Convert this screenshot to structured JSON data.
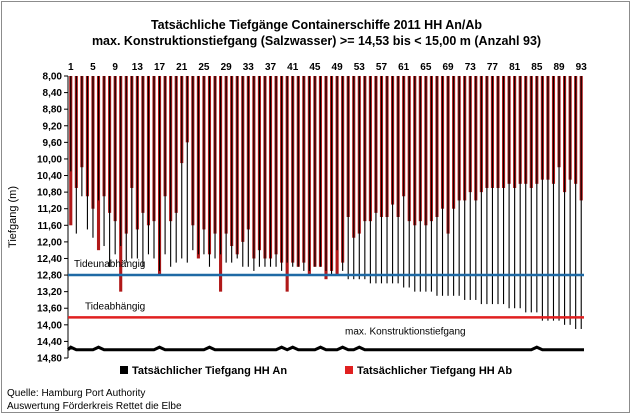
{
  "title_line1": "Tatsächliche Tiefgänge Containerschiffe  2011 HH An/Ab",
  "title_line2": "max. Konstruktionstiefgang  (Salzwasser) >= 14,53 bis < 15,00 m (Anzahl 93)",
  "source_line1": "Quelle: Hamburg Port Authority",
  "source_line2": "Auswertung Förderkreis Rettet die Elbe",
  "chart_data": {
    "type": "bar",
    "title": "Tatsächliche Tiefgänge Containerschiffe  2011 HH An/Ab",
    "subtitle": "max. Konstruktionstiefgang  (Salzwasser) >= 14,53 bis < 15,00 m (Anzahl 93)",
    "ylabel": "Tiefgang (m)",
    "xlabel": "",
    "ylim": [
      8.0,
      14.8
    ],
    "y_inverted": true,
    "y_ticks": [
      "8,00",
      "8,40",
      "8,80",
      "9,20",
      "9,60",
      "10,00",
      "10,40",
      "10,80",
      "11,20",
      "11,60",
      "12,00",
      "12,40",
      "12,80",
      "13,20",
      "13,60",
      "14,00",
      "14,40",
      "14,80"
    ],
    "x_tick_labels": [
      "1",
      "5",
      "9",
      "13",
      "17",
      "21",
      "25",
      "29",
      "33",
      "37",
      "41",
      "45",
      "49",
      "53",
      "57",
      "61",
      "65",
      "69",
      "73",
      "77",
      "81",
      "85",
      "89",
      "93"
    ],
    "categories": [
      1,
      2,
      3,
      4,
      5,
      6,
      7,
      8,
      9,
      10,
      11,
      12,
      13,
      14,
      15,
      16,
      17,
      18,
      19,
      20,
      21,
      22,
      23,
      24,
      25,
      26,
      27,
      28,
      29,
      30,
      31,
      32,
      33,
      34,
      35,
      36,
      37,
      38,
      39,
      40,
      41,
      42,
      43,
      44,
      45,
      46,
      47,
      48,
      49,
      50,
      51,
      52,
      53,
      54,
      55,
      56,
      57,
      58,
      59,
      60,
      61,
      62,
      63,
      64,
      65,
      66,
      67,
      68,
      69,
      70,
      71,
      72,
      73,
      74,
      75,
      76,
      77,
      78,
      79,
      80,
      81,
      82,
      83,
      84,
      85,
      86,
      87,
      88,
      89,
      90,
      91,
      92,
      93
    ],
    "series": [
      {
        "name": "Tatsächlicher Tiefgang HH An",
        "color": "#000000",
        "values": [
          10.3,
          11.8,
          10.9,
          11.7,
          11.9,
          11.0,
          12.1,
          12.6,
          12.3,
          12.1,
          12.5,
          12.4,
          12.4,
          12.6,
          12.3,
          12.4,
          12.7,
          12.3,
          12.6,
          12.5,
          12.4,
          12.5,
          12.2,
          12.3,
          12.3,
          12.6,
          12.4,
          12.3,
          12.5,
          12.5,
          12.4,
          12.6,
          12.6,
          12.7,
          12.6,
          12.6,
          12.6,
          12.6,
          12.7,
          12.5,
          12.6,
          12.6,
          12.7,
          12.7,
          12.6,
          12.6,
          12.7,
          12.8,
          12.2,
          12.7,
          12.9,
          12.9,
          12.9,
          12.9,
          13.0,
          13.0,
          13.0,
          13.0,
          13.0,
          13.0,
          13.1,
          13.1,
          13.2,
          13.2,
          13.2,
          13.2,
          13.3,
          13.3,
          13.3,
          13.3,
          13.3,
          13.4,
          13.4,
          13.4,
          13.5,
          13.5,
          13.5,
          13.5,
          13.5,
          13.6,
          13.6,
          13.6,
          13.7,
          13.7,
          13.7,
          13.9,
          13.9,
          13.9,
          13.9,
          14.0,
          14.0,
          14.1,
          14.1
        ]
      },
      {
        "name": "Tatsächlicher Tiefgang HH Ab",
        "color": "#b01818",
        "values": [
          11.6,
          10.7,
          10.2,
          10.9,
          11.2,
          12.2,
          10.9,
          11.3,
          11.5,
          13.2,
          11.8,
          10.7,
          11.7,
          11.3,
          11.6,
          11.5,
          12.8,
          10.9,
          11.5,
          11.3,
          10.1,
          9.6,
          11.6,
          12.4,
          11.7,
          12.3,
          11.8,
          13.2,
          11.8,
          12.1,
          12.3,
          12.0,
          11.7,
          12.4,
          12.2,
          12.4,
          12.4,
          12.3,
          12.5,
          13.2,
          12.5,
          12.6,
          12.5,
          12.8,
          12.6,
          12.6,
          12.9,
          12.7,
          12.8,
          12.5,
          11.4,
          11.9,
          11.8,
          11.5,
          11.5,
          11.3,
          11.4,
          11.4,
          11.1,
          11.4,
          10.9,
          11.5,
          11.6,
          11.5,
          11.6,
          11.5,
          11.4,
          11.2,
          11.8,
          11.2,
          11.0,
          11.0,
          10.8,
          11.0,
          10.8,
          10.7,
          10.7,
          10.7,
          10.7,
          10.6,
          10.7,
          10.6,
          10.6,
          10.7,
          10.6,
          10.5,
          10.5,
          10.6,
          10.2,
          10.8,
          10.5,
          10.6,
          11.0
        ]
      }
    ],
    "reference_lines": [
      {
        "label": "Tideunabhängig",
        "value": 12.8,
        "color": "#1f6aa5"
      },
      {
        "label": "Tideabhängig",
        "value": 13.82,
        "color": "#e02020"
      },
      {
        "label": "max. Konstruktionstiefgang",
        "value": 14.6,
        "color": "#000000"
      }
    ],
    "legend_position": "bottom",
    "grid": false
  }
}
